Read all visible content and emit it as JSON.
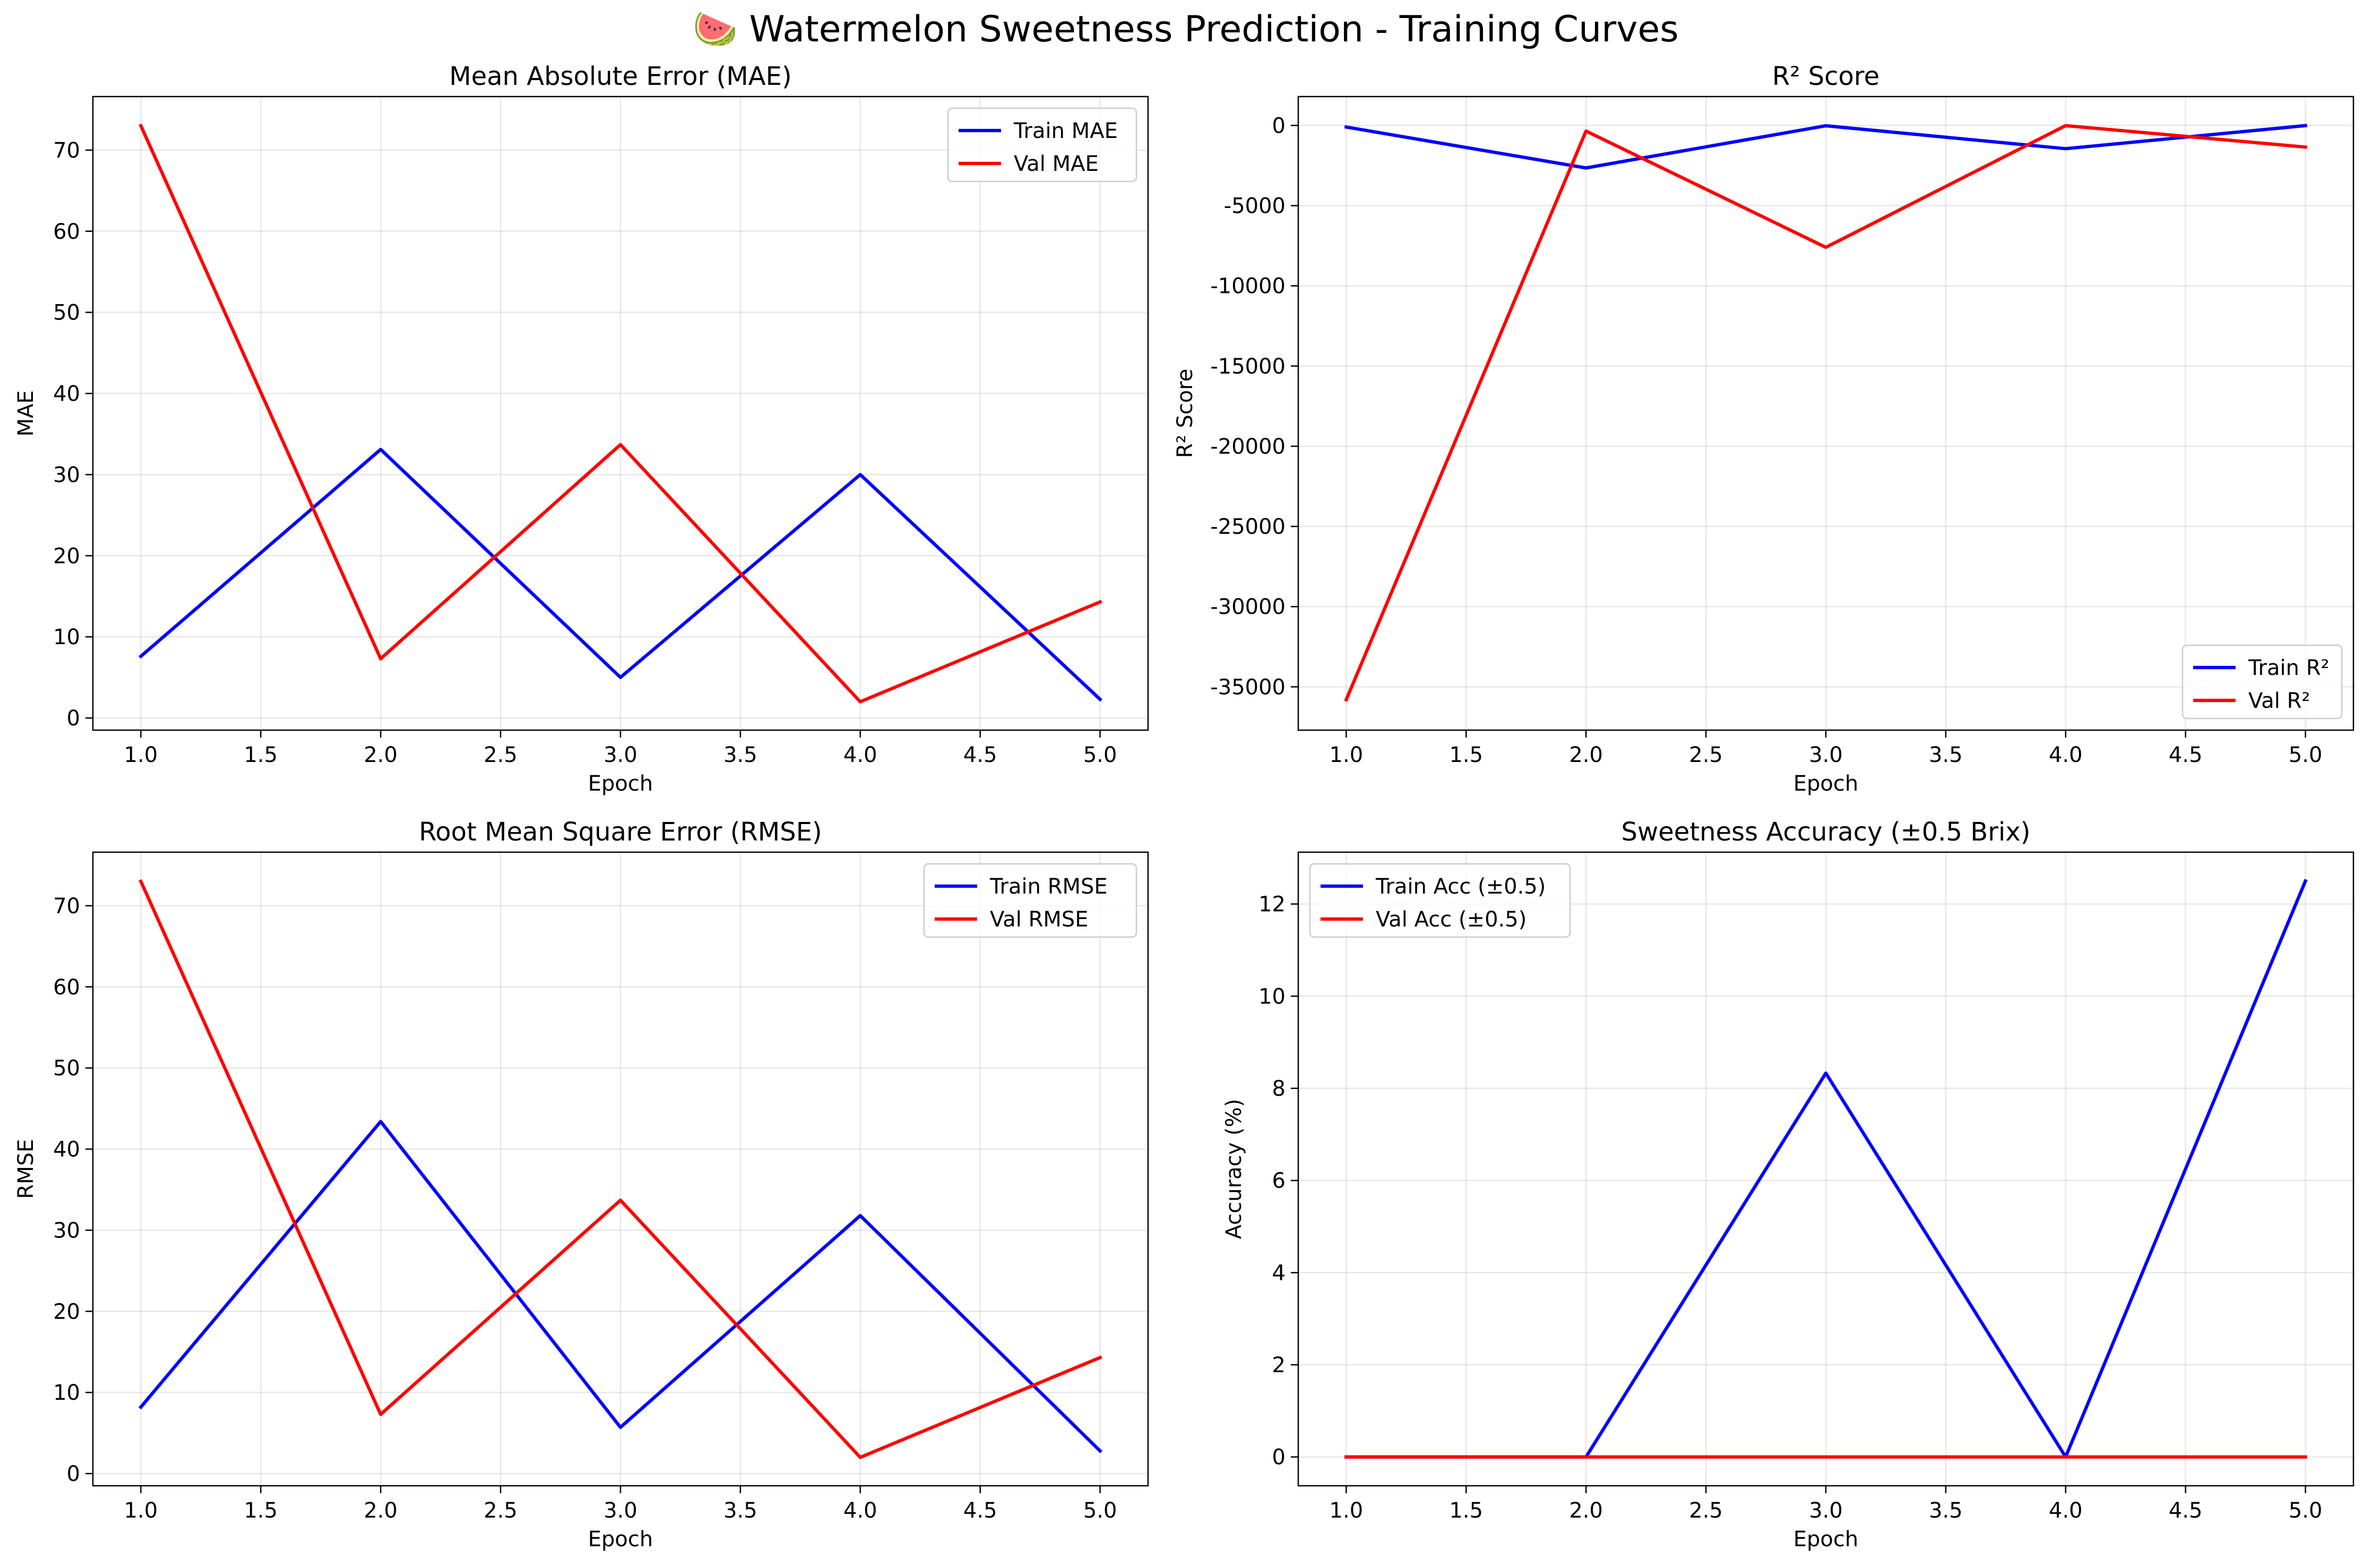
{
  "figure": {
    "suptitle": "🍉 Watermelon Sweetness Prediction - Training Curves"
  },
  "colors": {
    "train": "#0000ff",
    "val": "#ff0000"
  },
  "chart_data": [
    {
      "type": "line",
      "title": "Mean Absolute Error (MAE)",
      "xlabel": "Epoch",
      "ylabel": "MAE",
      "x": [
        1,
        2,
        3,
        4,
        5
      ],
      "xlim": [
        0.8,
        5.2
      ],
      "ylim": [
        -1.5,
        76.6
      ],
      "xticks": [
        1.0,
        1.5,
        2.0,
        2.5,
        3.0,
        3.5,
        4.0,
        4.5,
        5.0
      ],
      "xtick_labels": [
        "1.0",
        "1.5",
        "2.0",
        "2.5",
        "3.0",
        "3.5",
        "4.0",
        "4.5",
        "5.0"
      ],
      "yticks": [
        0,
        10,
        20,
        30,
        40,
        50,
        60,
        70
      ],
      "ytick_labels": [
        "0",
        "10",
        "20",
        "30",
        "40",
        "50",
        "60",
        "70"
      ],
      "grid": true,
      "legend": "upper right",
      "series": [
        {
          "name": "Train MAE",
          "color": "#0000ff",
          "values": [
            7.6,
            33.1,
            5.0,
            30.0,
            2.3
          ]
        },
        {
          "name": "Val MAE",
          "color": "#ff0000",
          "values": [
            73.0,
            7.3,
            33.7,
            2.0,
            14.3
          ]
        }
      ]
    },
    {
      "type": "line",
      "title": "R² Score",
      "xlabel": "Epoch",
      "ylabel": "R² Score",
      "x": [
        1,
        2,
        3,
        4,
        5
      ],
      "xlim": [
        0.8,
        5.2
      ],
      "ylim": [
        -37700,
        1800
      ],
      "xticks": [
        1.0,
        1.5,
        2.0,
        2.5,
        3.0,
        3.5,
        4.0,
        4.5,
        5.0
      ],
      "xtick_labels": [
        "1.0",
        "1.5",
        "2.0",
        "2.5",
        "3.0",
        "3.5",
        "4.0",
        "4.5",
        "5.0"
      ],
      "yticks": [
        0,
        -5000,
        -10000,
        -15000,
        -20000,
        -25000,
        -30000,
        -35000
      ],
      "ytick_labels": [
        "0",
        "-5000",
        "-10000",
        "-15000",
        "-20000",
        "-25000",
        "-30000",
        "-35000"
      ],
      "grid": true,
      "legend": "lower right",
      "series": [
        {
          "name": "Train R²",
          "color": "#0000ff",
          "values": [
            -100,
            -2650,
            -20,
            -1450,
            -10
          ]
        },
        {
          "name": "Val R²",
          "color": "#ff0000",
          "values": [
            -35800,
            -350,
            -7600,
            -10,
            -1350
          ]
        }
      ]
    },
    {
      "type": "line",
      "title": "Root Mean Square Error (RMSE)",
      "xlabel": "Epoch",
      "ylabel": "RMSE",
      "x": [
        1,
        2,
        3,
        4,
        5
      ],
      "xlim": [
        0.8,
        5.2
      ],
      "ylim": [
        -1.5,
        76.6
      ],
      "xticks": [
        1.0,
        1.5,
        2.0,
        2.5,
        3.0,
        3.5,
        4.0,
        4.5,
        5.0
      ],
      "xtick_labels": [
        "1.0",
        "1.5",
        "2.0",
        "2.5",
        "3.0",
        "3.5",
        "4.0",
        "4.5",
        "5.0"
      ],
      "yticks": [
        0,
        10,
        20,
        30,
        40,
        50,
        60,
        70
      ],
      "ytick_labels": [
        "0",
        "10",
        "20",
        "30",
        "40",
        "50",
        "60",
        "70"
      ],
      "grid": true,
      "legend": "upper right",
      "series": [
        {
          "name": "Train RMSE",
          "color": "#0000ff",
          "values": [
            8.2,
            43.4,
            5.7,
            31.8,
            2.8
          ]
        },
        {
          "name": "Val RMSE",
          "color": "#ff0000",
          "values": [
            73.0,
            7.3,
            33.7,
            2.0,
            14.3
          ]
        }
      ]
    },
    {
      "type": "line",
      "title": "Sweetness Accuracy (±0.5 Brix)",
      "xlabel": "Epoch",
      "ylabel": "Accuracy (%)",
      "x": [
        1,
        2,
        3,
        4,
        5
      ],
      "xlim": [
        0.8,
        5.2
      ],
      "ylim": [
        -0.625,
        13.125
      ],
      "xticks": [
        1.0,
        1.5,
        2.0,
        2.5,
        3.0,
        3.5,
        4.0,
        4.5,
        5.0
      ],
      "xtick_labels": [
        "1.0",
        "1.5",
        "2.0",
        "2.5",
        "3.0",
        "3.5",
        "4.0",
        "4.5",
        "5.0"
      ],
      "yticks": [
        0,
        2,
        4,
        6,
        8,
        10,
        12
      ],
      "ytick_labels": [
        "0",
        "2",
        "4",
        "6",
        "8",
        "10",
        "12"
      ],
      "grid": true,
      "legend": "upper left",
      "series": [
        {
          "name": "Train Acc (±0.5)",
          "color": "#0000ff",
          "values": [
            0,
            0,
            8.33,
            0,
            12.5
          ]
        },
        {
          "name": "Val Acc (±0.5)",
          "color": "#ff0000",
          "values": [
            0,
            0,
            0,
            0,
            0
          ]
        }
      ]
    }
  ]
}
